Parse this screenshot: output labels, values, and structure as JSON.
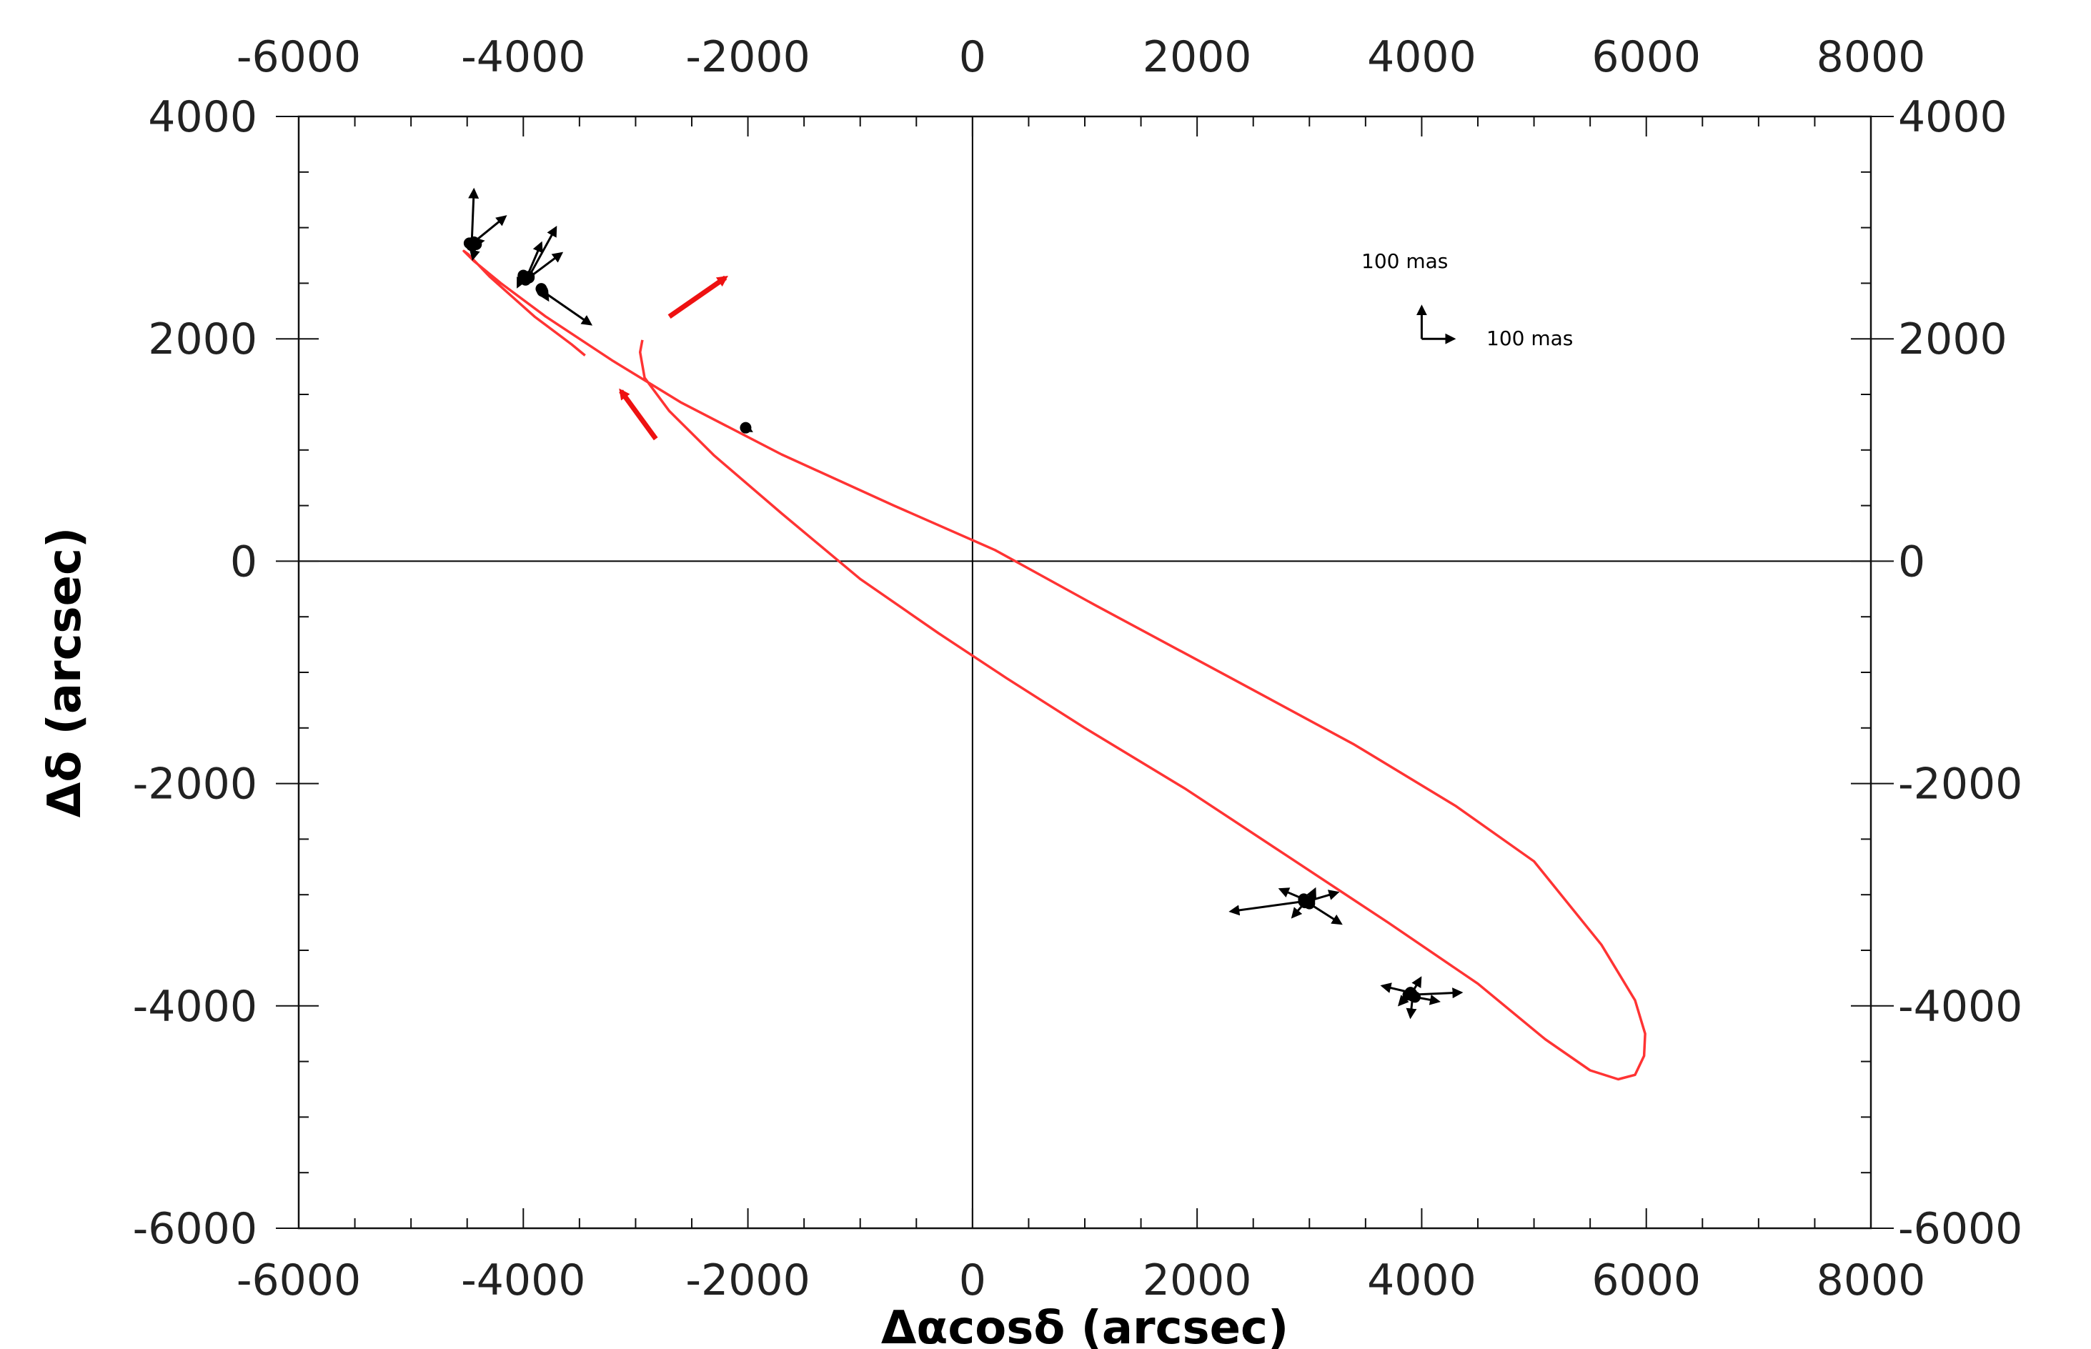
{
  "chart_data": {
    "type": "scatter",
    "title": "",
    "xlabel": "Δαcosδ (arcsec)",
    "ylabel": "Δδ (arcsec)",
    "xlim": [
      -6000,
      8000
    ],
    "ylim": [
      -6000,
      4000
    ],
    "xticks": [
      -6000,
      -4000,
      -2000,
      0,
      2000,
      4000,
      6000,
      8000
    ],
    "yticks": [
      -6000,
      -4000,
      -2000,
      0,
      2000,
      4000
    ],
    "xtick_labels": [
      "-6000",
      "-4000",
      "-2000",
      "0",
      "2000",
      "4000",
      "6000",
      "8000"
    ],
    "ytick_labels": [
      "-6000",
      "-4000",
      "-2000",
      "0",
      "2000",
      "4000"
    ],
    "zero_lines": true,
    "grid": false,
    "colors": {
      "orbit": "#ff3333",
      "direction_arrow": "#ee1111",
      "vector": "#000000"
    },
    "orbit_path": [
      [
        -2940,
        1990
      ],
      [
        -2960,
        1880
      ],
      [
        -2920,
        1650
      ],
      [
        -2700,
        1350
      ],
      [
        -2300,
        950
      ],
      [
        -1700,
        430
      ],
      [
        -1000,
        -160
      ],
      [
        -300,
        -650
      ],
      [
        300,
        -1050
      ],
      [
        1000,
        -1500
      ],
      [
        1900,
        -2050
      ],
      [
        2800,
        -2650
      ],
      [
        3700,
        -3250
      ],
      [
        4500,
        -3800
      ],
      [
        5100,
        -4300
      ],
      [
        5500,
        -4580
      ],
      [
        5750,
        -4660
      ],
      [
        5900,
        -4620
      ],
      [
        5980,
        -4450
      ],
      [
        5990,
        -4250
      ],
      [
        5900,
        -3950
      ],
      [
        5600,
        -3450
      ],
      [
        5000,
        -2700
      ],
      [
        4300,
        -2200
      ],
      [
        3400,
        -1650
      ],
      [
        2300,
        -1050
      ],
      [
        1100,
        -400
      ],
      [
        200,
        100
      ],
      [
        -700,
        500
      ],
      [
        -1700,
        960
      ],
      [
        -2600,
        1430
      ],
      [
        -3200,
        1800
      ],
      [
        -3800,
        2200
      ],
      [
        -4200,
        2500
      ],
      [
        -4440,
        2700
      ],
      [
        -4530,
        2790
      ],
      [
        -4490,
        2760
      ],
      [
        -4300,
        2560
      ],
      [
        -3900,
        2200
      ],
      [
        -3570,
        1950
      ],
      [
        -3450,
        1850
      ]
    ],
    "vector_groups": [
      {
        "group": "upper-left",
        "vectors": [
          [
            -4460,
            2840,
            -4440,
            3340
          ],
          [
            -4440,
            2870,
            -4160,
            3100
          ],
          [
            -4480,
            2860,
            -4360,
            2880
          ],
          [
            -4420,
            2850,
            -4450,
            2720
          ],
          [
            -3950,
            2560,
            -3710,
            3000
          ],
          [
            -3950,
            2550,
            -3660,
            2770
          ],
          [
            -3980,
            2530,
            -3840,
            2860
          ],
          [
            -4000,
            2570,
            -4050,
            2470
          ],
          [
            -3830,
            2430,
            -3400,
            2130
          ],
          [
            -3840,
            2450,
            -3780,
            2350
          ]
        ]
      },
      {
        "group": "middle",
        "vectors": [
          [
            -2020,
            1200,
            -1970,
            1170
          ]
        ]
      },
      {
        "group": "lower-right-1",
        "vectors": [
          [
            2950,
            -3060,
            2300,
            -3150
          ],
          [
            2950,
            -3040,
            2740,
            -2950
          ],
          [
            2980,
            -3060,
            3250,
            -2980
          ],
          [
            3000,
            -3080,
            3280,
            -3260
          ],
          [
            2960,
            -3070,
            2850,
            -3200
          ],
          [
            3000,
            -3060,
            3050,
            -2950
          ]
        ]
      },
      {
        "group": "lower-right-2",
        "vectors": [
          [
            3900,
            -3900,
            4350,
            -3880
          ],
          [
            3900,
            -3880,
            3650,
            -3820
          ],
          [
            3920,
            -3910,
            3900,
            -4100
          ],
          [
            3910,
            -3890,
            3990,
            -3750
          ],
          [
            3940,
            -3920,
            4150,
            -3960
          ],
          [
            3880,
            -3900,
            3800,
            -3990
          ]
        ]
      }
    ],
    "direction_arrows": [
      {
        "from": [
          -2700,
          2200
        ],
        "to": [
          -2200,
          2550
        ]
      },
      {
        "from": [
          -2820,
          1100
        ],
        "to": [
          -3130,
          1530
        ]
      }
    ],
    "scale_bar": {
      "origin": [
        4000,
        2000
      ],
      "north_label": "100 mas",
      "east_label": "100 mas"
    }
  }
}
